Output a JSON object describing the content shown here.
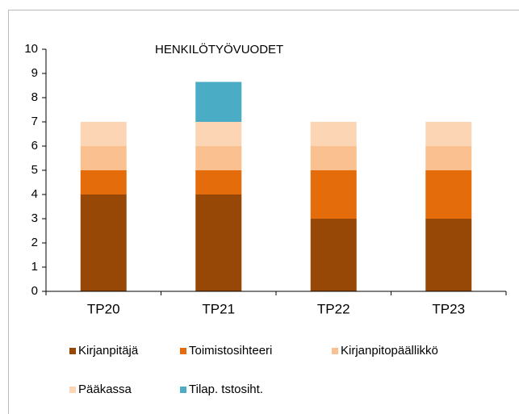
{
  "chart_data": {
    "type": "stacked_bar",
    "title": "HENKILÖTYÖVUODET",
    "categories": [
      "TP20",
      "TP21",
      "TP22",
      "TP23"
    ],
    "series": [
      {
        "name": "Kirjanpitäjä",
        "color": "#974706",
        "values": [
          4,
          4,
          3,
          3
        ]
      },
      {
        "name": "Toimistosihteeri",
        "color": "#e46c0a",
        "values": [
          1,
          1,
          2,
          2
        ]
      },
      {
        "name": "Kirjanpitopäällikkö",
        "color": "#fac090",
        "values": [
          1,
          1,
          1,
          1
        ]
      },
      {
        "name": "Pääkassa",
        "color": "#fcd5b5",
        "values": [
          1,
          1,
          1,
          1
        ]
      },
      {
        "name": "Tilap. tstosiht.",
        "color": "#4bacc6",
        "values": [
          0,
          1.65,
          0,
          0
        ]
      }
    ],
    "ylim": [
      0,
      10
    ],
    "yticks": [
      0,
      1,
      2,
      3,
      4,
      5,
      6,
      7,
      8,
      9,
      10
    ],
    "grid": false,
    "legend": "bottom"
  }
}
